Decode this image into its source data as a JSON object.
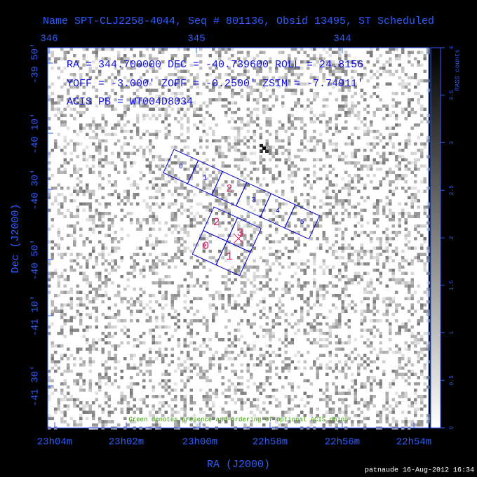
{
  "header": {
    "title": "Name SPT-CLJ2258-4044, Seq # 801136, Obsid 13495, ST Scheduled"
  },
  "pointing": {
    "line1": "RA = 344.700000   DEC = -40.739600  ROLL = 24.8156",
    "line2": "YOFF = -3.000'   ZOFF = -0.2500'   ZSIM = -7.74911'",
    "line3": "ACIS PB = WT004D8034"
  },
  "axes": {
    "top_ticks": [
      "346",
      "345",
      "344"
    ],
    "bottom_ticks": [
      "23h04m",
      "23h02m",
      "23h00m",
      "22h58m",
      "22h56m",
      "22h54m"
    ],
    "left_ticks": [
      "-39 50'",
      "-40 10'",
      "-40 30'",
      "-40 50'",
      "-41 10'",
      "-41 30'"
    ],
    "x_label": "RA (J2000)",
    "y_label": "Dec (J2000)"
  },
  "colorbar": {
    "label": "RASS counts",
    "ticks": [
      "0",
      "0.5",
      "1",
      "1.5",
      "2",
      "2.5",
      "3",
      "3.5",
      "4"
    ]
  },
  "chips": {
    "acis_s": [
      "0",
      "1",
      "2",
      "3",
      "4",
      "5"
    ],
    "acis_i": [
      "2",
      "3",
      "0",
      "1"
    ]
  },
  "note": "Green denotes presence and ordering of optional ACIS chips",
  "footer": "patnaude 16-Aug-2012 16:34"
}
